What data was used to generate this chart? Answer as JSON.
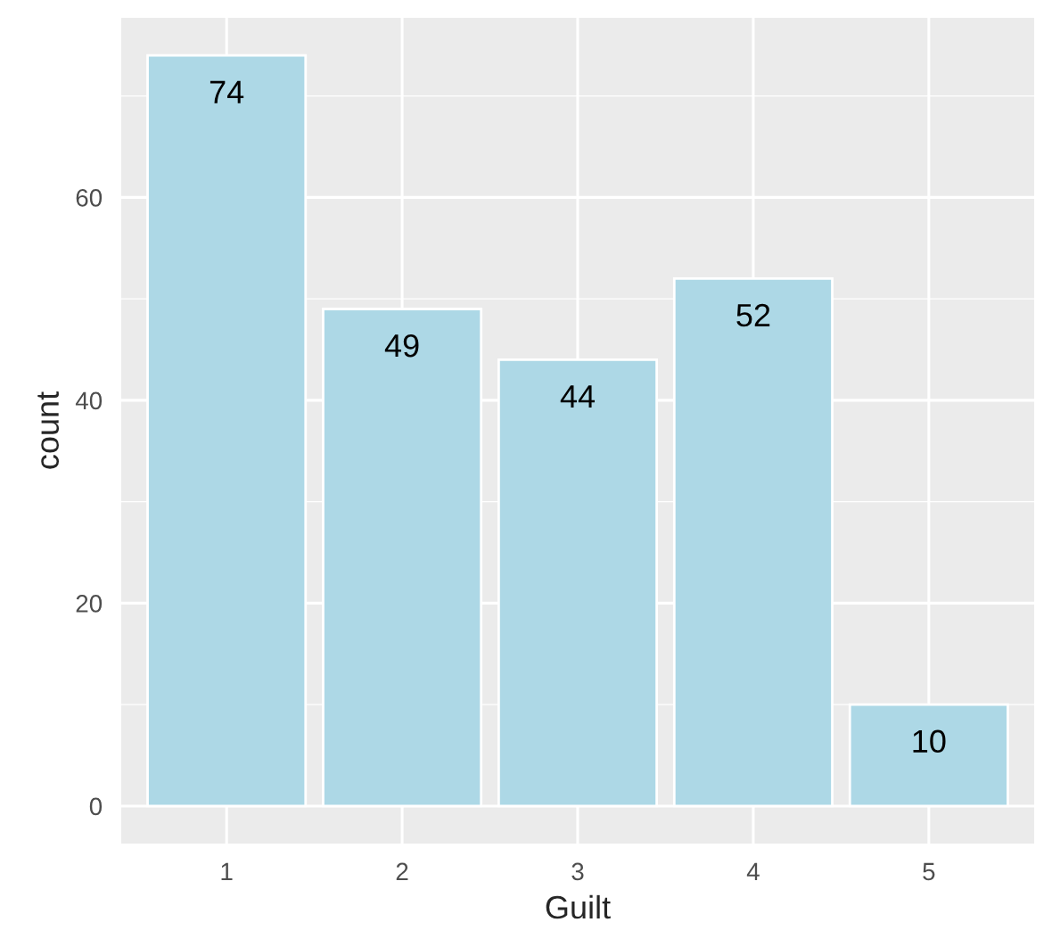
{
  "chart_data": {
    "type": "bar",
    "xlabel": "Guilt",
    "ylabel": "count",
    "categories": [
      "1",
      "2",
      "3",
      "4",
      "5"
    ],
    "values": [
      74,
      49,
      44,
      52,
      10
    ],
    "color": "#add8e6",
    "ylim": [
      -3.7,
      77.7
    ],
    "yticks": [
      0,
      20,
      40,
      60
    ],
    "grid": true,
    "data_labels": true
  }
}
